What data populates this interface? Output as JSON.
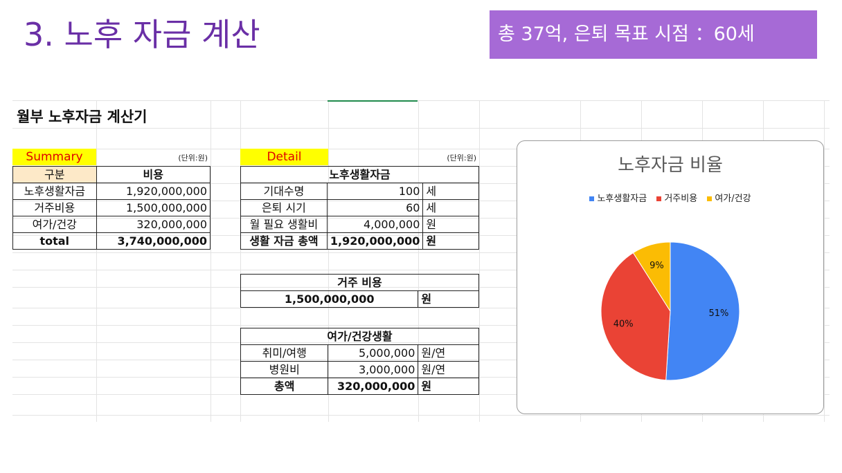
{
  "slide": {
    "title": "3. 노후 자금 계산",
    "goal": "총 37억, 은퇴 목표 시점 ：60세"
  },
  "sheet": {
    "title": "월부 노후자금 계산기",
    "summary": {
      "label": "Summary",
      "unit": "(단위:원)",
      "headers": [
        "구분",
        "비용"
      ],
      "rows": [
        {
          "name": "노후생활자금",
          "value": "1,920,000,000"
        },
        {
          "name": "거주비용",
          "value": "1,500,000,000"
        },
        {
          "name": "여가/건강",
          "value": "320,000,000"
        },
        {
          "name": "total",
          "value": "3,740,000,000"
        }
      ]
    },
    "detail": {
      "label": "Detail",
      "unit": "(단위:원)",
      "living": {
        "header": "노후생활자금",
        "rows": [
          {
            "name": "기대수명",
            "value": "100",
            "unit": "세"
          },
          {
            "name": "은퇴 시기",
            "value": "60",
            "unit": "세"
          },
          {
            "name": "월 필요 생활비",
            "value": "4,000,000",
            "unit": "원"
          },
          {
            "name": "생활 자금 총액",
            "value": "1,920,000,000",
            "unit": "원"
          }
        ]
      },
      "housing": {
        "header": "거주 비용",
        "value": "1,500,000,000",
        "unit": "원"
      },
      "leisure": {
        "header": "여가/건강생활",
        "rows": [
          {
            "name": "취미/여행",
            "value": "5,000,000",
            "unit": "원/연"
          },
          {
            "name": "병원비",
            "value": "3,000,000",
            "unit": "원/연"
          },
          {
            "name": "총액",
            "value": "320,000,000",
            "unit": "원"
          }
        ]
      }
    }
  },
  "chart_data": {
    "type": "pie",
    "title": "노후자금 비율",
    "legend_position": "top",
    "categories": [
      "노후생활자금",
      "거주비용",
      "여가/건강"
    ],
    "values": [
      51,
      40,
      9
    ],
    "labels": [
      "51%",
      "40%",
      "9%"
    ],
    "colors": [
      "#4285f4",
      "#ea4335",
      "#fbbc04"
    ]
  }
}
